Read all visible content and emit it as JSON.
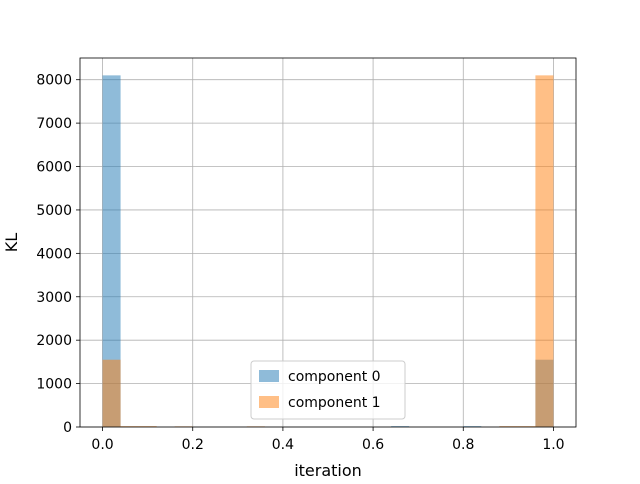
{
  "chart_data": {
    "type": "bar",
    "subtype": "histogram",
    "title": "",
    "xlabel": "iteration",
    "ylabel": "KL",
    "xlim": [
      -0.05,
      1.05
    ],
    "ylim": [
      0,
      8500
    ],
    "xticks": [
      0.0,
      0.2,
      0.4,
      0.6,
      0.8,
      1.0
    ],
    "xtick_labels": [
      "0.0",
      "0.2",
      "0.4",
      "0.6",
      "0.8",
      "1.0"
    ],
    "yticks": [
      0,
      1000,
      2000,
      3000,
      4000,
      5000,
      6000,
      7000,
      8000
    ],
    "ytick_labels": [
      "0",
      "1000",
      "2000",
      "3000",
      "4000",
      "5000",
      "6000",
      "7000",
      "8000"
    ],
    "grid": true,
    "legend_position": "bottom-center",
    "bin_edges": [
      0.0,
      0.04,
      0.08,
      0.12,
      0.16,
      0.2,
      0.24,
      0.28,
      0.32,
      0.36,
      0.4,
      0.44,
      0.48,
      0.52,
      0.56,
      0.6,
      0.64,
      0.68,
      0.72,
      0.76,
      0.8,
      0.84,
      0.88,
      0.92,
      0.96,
      1.0
    ],
    "series": [
      {
        "name": "component 0",
        "color": "#1f77b4",
        "alpha": 0.5,
        "values": [
          8100,
          10,
          10,
          0,
          5,
          0,
          0,
          0,
          5,
          0,
          0,
          0,
          0,
          0,
          0,
          0,
          20,
          0,
          0,
          0,
          20,
          0,
          10,
          10,
          1550
        ]
      },
      {
        "name": "component 1",
        "color": "#ff7f0e",
        "alpha": 0.5,
        "values": [
          1550,
          20,
          20,
          0,
          15,
          0,
          0,
          0,
          15,
          0,
          0,
          0,
          0,
          0,
          0,
          0,
          0,
          0,
          0,
          0,
          0,
          0,
          20,
          20,
          8100
        ]
      }
    ]
  }
}
